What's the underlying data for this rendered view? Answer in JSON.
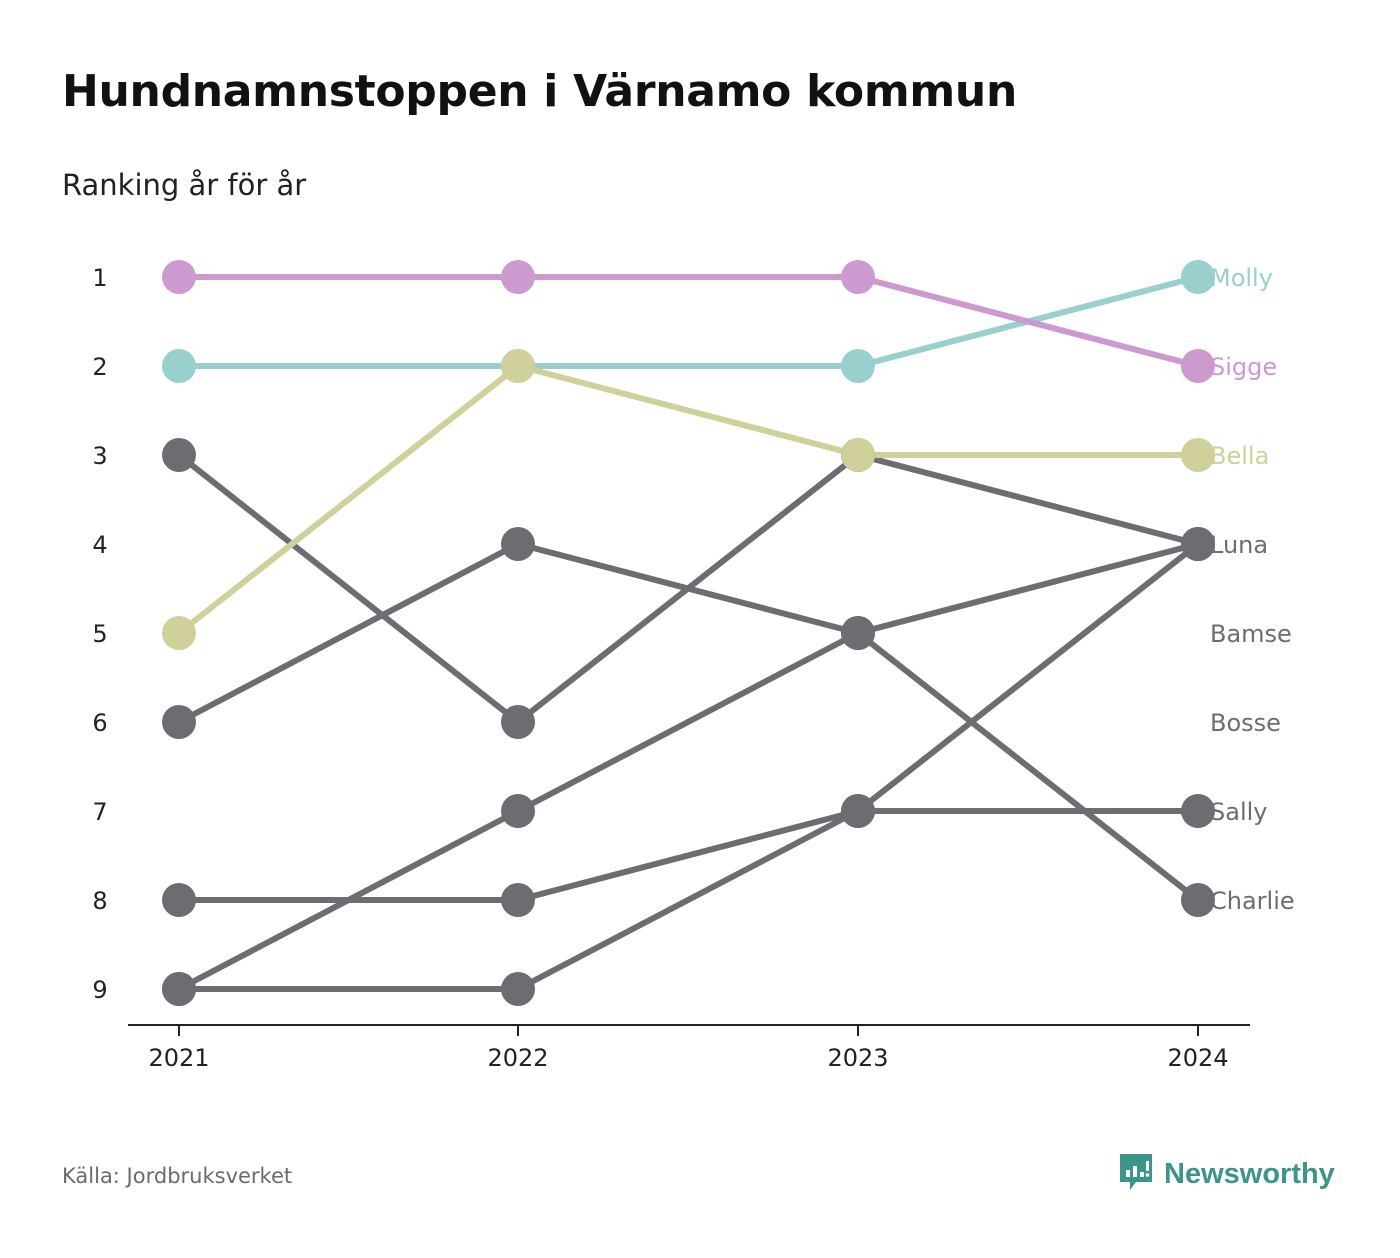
{
  "header": {
    "title": "Hundnamnstoppen i Värnamo kommun",
    "subtitle": "Ranking år för år"
  },
  "footer": {
    "source": "Källa: Jordbruksverket",
    "brand": "Newsworthy",
    "brand_icon": "newsworthy-logo-icon",
    "brand_color": "#3d948a"
  },
  "chart_data": {
    "type": "line",
    "subtype": "bump",
    "x": [
      "2021",
      "2022",
      "2023",
      "2024"
    ],
    "y_ticks": [
      "1",
      "2",
      "3",
      "4",
      "5",
      "6",
      "7",
      "8",
      "9"
    ],
    "y_reversed": true,
    "ylim": [
      1,
      9
    ],
    "grid": false,
    "legend": "direct labels at right end of lines",
    "series": [
      {
        "name": "Molly",
        "color": "#99cfcd",
        "values": [
          2,
          2,
          2,
          1
        ]
      },
      {
        "name": "Sigge",
        "color": "#cc9acf",
        "values": [
          1,
          1,
          1,
          2
        ]
      },
      {
        "name": "Bella",
        "color": "#cfd09a",
        "values": [
          5,
          2,
          3,
          3
        ]
      },
      {
        "name": "Luna",
        "color": "#6d6c73",
        "values": [
          6,
          4,
          5,
          4
        ]
      },
      {
        "name": "Bamse",
        "color": "#6d6c73",
        "values": [
          3,
          6,
          3,
          4
        ]
      },
      {
        "name": "Bosse",
        "color": "#6d6c73",
        "values": [
          9,
          9,
          7,
          4
        ]
      },
      {
        "name": "Sally",
        "color": "#6d6c73",
        "values": [
          8,
          8,
          7,
          7
        ]
      },
      {
        "name": "Charlie",
        "color": "#6d6c73",
        "values": [
          9,
          7,
          5,
          8
        ]
      }
    ],
    "end_labels": [
      {
        "text": "Molly",
        "rank": 1,
        "color": "#99cfcd"
      },
      {
        "text": "Sigge",
        "rank": 2,
        "color": "#cc9acf"
      },
      {
        "text": "Bella",
        "rank": 3,
        "color": "#cfd09a"
      },
      {
        "text": "Luna",
        "rank": 4,
        "color": "#6d6c73"
      },
      {
        "text": "Bamse",
        "rank": 5,
        "color": "#6d6c73"
      },
      {
        "text": "Bosse",
        "rank": 6,
        "color": "#6d6c73"
      },
      {
        "text": "Sally",
        "rank": 7,
        "color": "#6d6c73"
      },
      {
        "text": "Charlie",
        "rank": 8,
        "color": "#6d6c73"
      }
    ],
    "axis_color": "#222222",
    "tick_label_color": "#222222"
  }
}
